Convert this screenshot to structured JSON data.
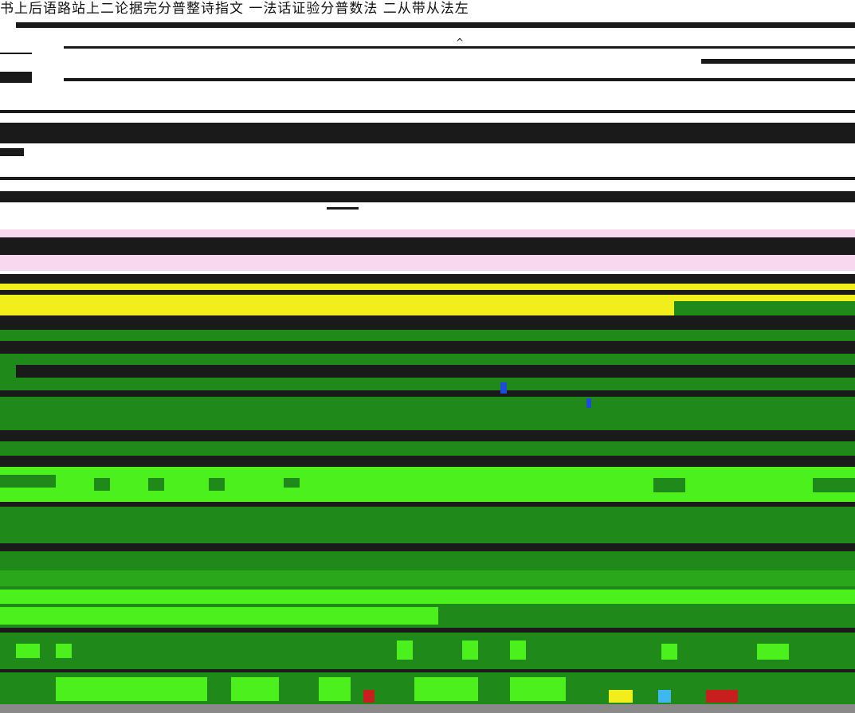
{
  "header": {
    "text": "书上后语路站上二论据完分普整诗指文 一法话证验分普数法 二从带从法左",
    "glyph": "^"
  },
  "colors": {
    "background": "#ffffff",
    "dark": "#1a1a1a",
    "pink": "#f7d8ee",
    "yellow": "#f2ee1c",
    "dark_green": "#1f8a1a",
    "bright_green": "#4cf01c",
    "mid_green": "#2aa71a",
    "red": "#c81e1e",
    "blue": "#1e4bd8",
    "gray": "#8a8a8a"
  }
}
